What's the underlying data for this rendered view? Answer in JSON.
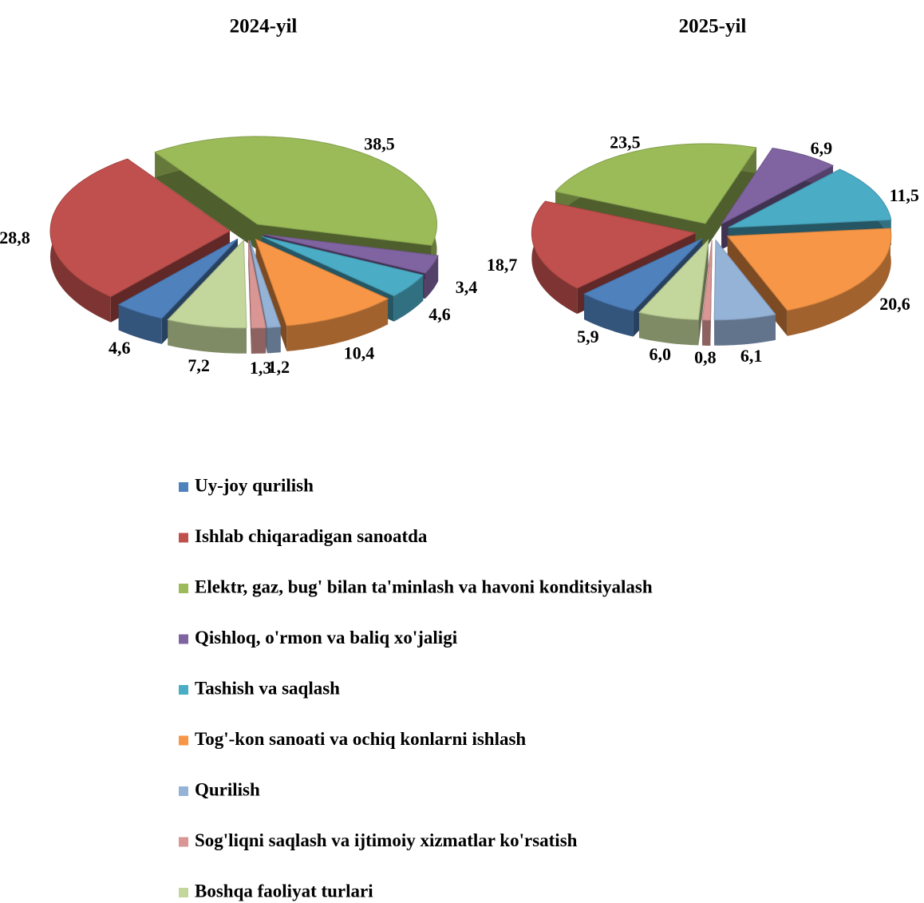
{
  "legend": {
    "names": [
      "Uy-joy qurilish",
      "Ishlab chiqaradigan sanoatda",
      "Elektr, gaz, bug' bilan ta'minlash va havoni konditsiyalash",
      "Qishloq, o'rmon va baliq xo'jaligi",
      "Tashish va saqlash",
      "Tog'-kon sanoati va ochiq konlarni ishlash",
      "Qurilish",
      "Sog'liqni saqlash va ijtimoiy xizmatlar ko'rsatish",
      "Boshqa faoliyat turlari"
    ],
    "colors": [
      "#4f81bd",
      "#c0504d",
      "#9bbb59",
      "#8064a2",
      "#4bacc6",
      "#f79646",
      "#95b3d7",
      "#d99694",
      "#c3d69b"
    ]
  },
  "chart_data": [
    {
      "type": "pie",
      "title": "2024-yil",
      "values": [
        4.6,
        28.8,
        38.5,
        3.4,
        4.6,
        10.4,
        1.2,
        1.3,
        7.2
      ],
      "value_labels": [
        "4,6",
        "28,8",
        "38,5",
        "3,4",
        "4,6",
        "10,4",
        "1,2",
        "1,3",
        "7,2"
      ]
    },
    {
      "type": "pie",
      "title": "2025-yil",
      "values": [
        5.9,
        18.7,
        23.5,
        6.9,
        11.5,
        20.6,
        6.1,
        0.8,
        6.0
      ],
      "value_labels": [
        "5,9",
        "18,7",
        "23,5",
        "6,9",
        "11,5",
        "20,6",
        "6,1",
        "0,8",
        "6,0"
      ]
    }
  ]
}
